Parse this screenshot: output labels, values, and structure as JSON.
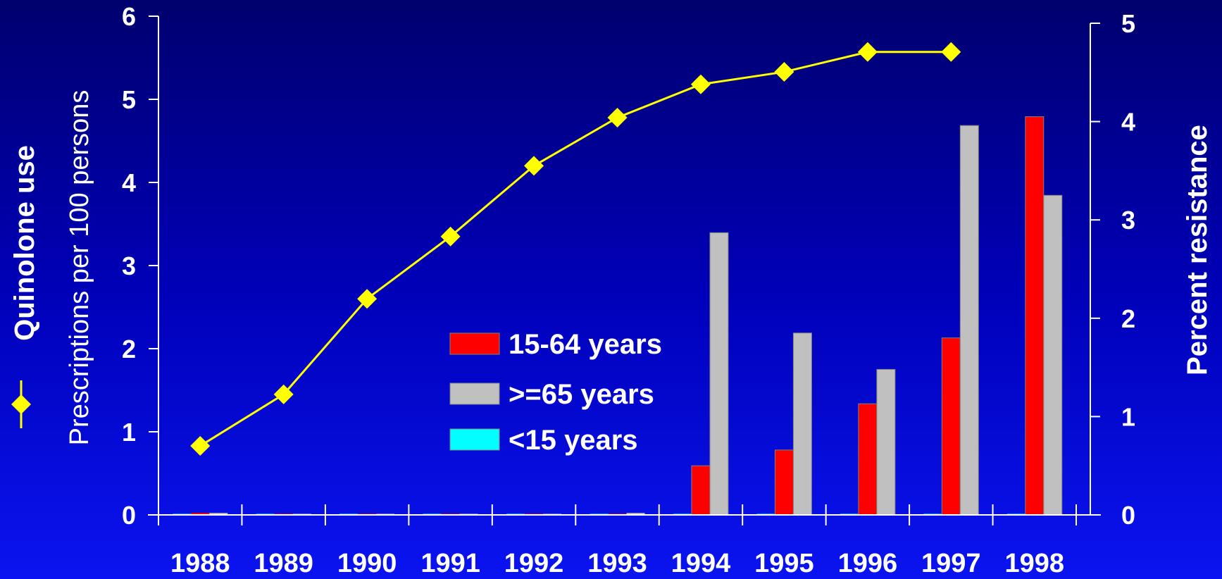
{
  "chart_data": {
    "type": "bar",
    "categories": [
      "1988",
      "1989",
      "1990",
      "1991",
      "1992",
      "1993",
      "1994",
      "1995",
      "1996",
      "1997",
      "1998"
    ],
    "left_axis": {
      "title": "Quinolone use",
      "subtitle": "Prescriptions per 100  persons",
      "ylim": [
        0,
        6
      ],
      "ticks": [
        "0",
        "1",
        "2",
        "3",
        "4",
        "5",
        "6"
      ]
    },
    "right_axis": {
      "title": "Percent resistance",
      "ylim": [
        0,
        5
      ],
      "ticks": [
        "0",
        "1",
        "2",
        "3",
        "4",
        "5"
      ]
    },
    "line_series": {
      "name": "Quinolone use",
      "axis": "left",
      "color": "#ffff00",
      "marker": "diamond",
      "values": [
        0.83,
        1.45,
        2.6,
        3.35,
        4.2,
        4.78,
        5.18,
        5.33,
        5.57,
        5.57,
        null
      ]
    },
    "bar_series": [
      {
        "name": "<15 years",
        "axis": "right",
        "color": "#00ffff",
        "values": [
          0,
          0,
          0,
          0,
          0,
          0,
          0,
          0,
          0,
          0,
          0
        ]
      },
      {
        "name": "15-64 years",
        "axis": "right",
        "color": "#ff0000",
        "values": [
          0.02,
          0,
          0,
          0,
          0,
          0,
          0.5,
          0.66,
          1.13,
          1.8,
          4.05
        ]
      },
      {
        "name": ">=65 years",
        "axis": "right",
        "color": "#c0c0c0",
        "values": [
          0.02,
          0,
          0,
          0,
          0,
          0.02,
          2.87,
          1.85,
          1.48,
          3.96,
          3.25
        ]
      }
    ],
    "legend": {
      "position": "center",
      "entries": [
        {
          "label": "15-64 years",
          "color": "#ff0000"
        },
        {
          "label": ">=65 years",
          "color": "#c0c0c0"
        },
        {
          "label": "<15 years",
          "color": "#00ffff"
        }
      ]
    },
    "grid": false
  }
}
